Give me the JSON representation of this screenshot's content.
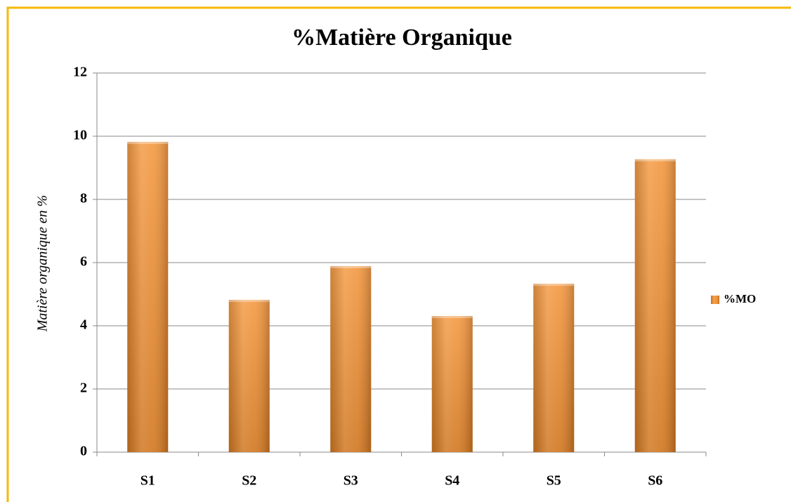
{
  "chart_data": {
    "type": "bar",
    "title": "%Matière Organique",
    "y_label": "Matière organique en %",
    "categories": [
      "S1",
      "S2",
      "S3",
      "S4",
      "S5",
      "S6"
    ],
    "series": [
      {
        "name": "%MO",
        "color": "#f28a26",
        "values": [
          9.82,
          4.82,
          5.89,
          4.31,
          5.33,
          9.27
        ]
      }
    ],
    "ylim": [
      0,
      12
    ],
    "yticks": [
      0,
      2,
      4,
      6,
      8,
      10,
      12
    ],
    "grid": true,
    "legend": "right"
  }
}
